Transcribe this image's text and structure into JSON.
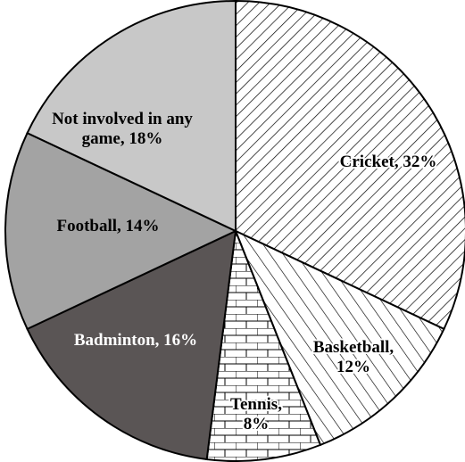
{
  "chart_data": {
    "type": "pie",
    "title": "",
    "start_angle_deg": 0,
    "direction": "clockwise",
    "slices": [
      {
        "label_lines": [
          "Cricket, 32%"
        ],
        "value": 32,
        "fill": "pattern-diagonal-dense"
      },
      {
        "label_lines": [
          "Basketball,",
          "12%"
        ],
        "value": 12,
        "fill": "pattern-diagonal-wide"
      },
      {
        "label_lines": [
          "Tennis,",
          "8%"
        ],
        "value": 8,
        "fill": "pattern-brick"
      },
      {
        "label_lines": [
          "Badminton, 16%"
        ],
        "value": 16,
        "fill": "#5a5555"
      },
      {
        "label_lines": [
          "Football, 14%"
        ],
        "value": 14,
        "fill": "#a3a3a3"
      },
      {
        "label_lines": [
          "Not involved in any",
          "game, 18%"
        ],
        "value": 18,
        "fill": "#c8c8c8"
      }
    ]
  }
}
